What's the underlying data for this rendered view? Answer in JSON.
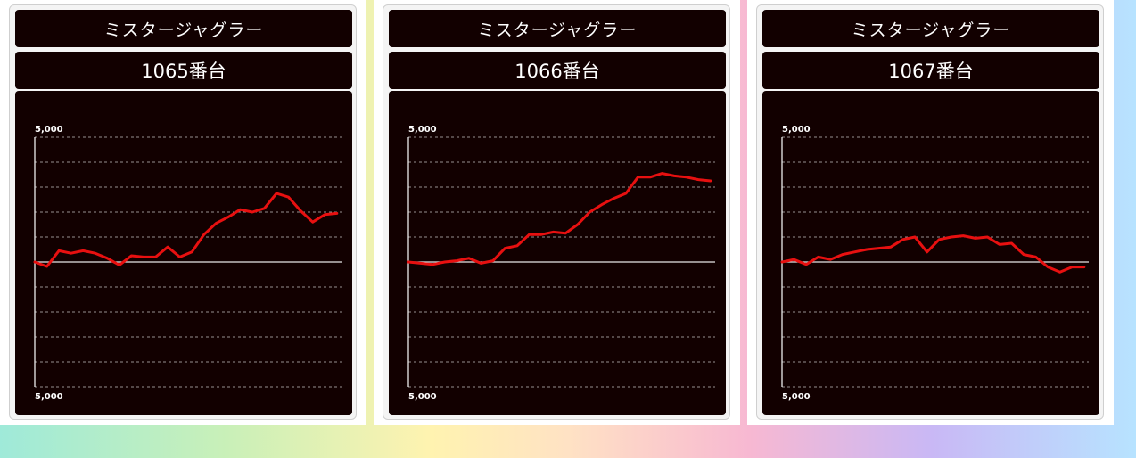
{
  "colors": {
    "line": "#e81010",
    "plot_bg": "#120000",
    "grid": "#ffffff"
  },
  "panels": [
    {
      "machine": "ミスタージャグラー",
      "unit": "1065番台"
    },
    {
      "machine": "ミスタージャグラー",
      "unit": "1066番台"
    },
    {
      "machine": "ミスタージャグラー",
      "unit": "1067番台"
    }
  ],
  "chart_data": [
    {
      "type": "line",
      "y_top_label": "5,000",
      "y_bottom_label": "5,000",
      "ylim": [
        -5000,
        5000
      ],
      "grid": true,
      "series": [
        {
          "values": [
            0,
            -180,
            450,
            350,
            450,
            350,
            150,
            -120,
            250,
            200,
            200,
            600,
            200,
            400,
            1100,
            1550,
            1800,
            2100,
            2000,
            2150,
            2750,
            2600,
            2050,
            1600,
            1900,
            1950
          ]
        }
      ]
    },
    {
      "type": "line",
      "y_top_label": "5,000",
      "y_bottom_label": "5,000",
      "ylim": [
        -5000,
        5000
      ],
      "grid": true,
      "series": [
        {
          "values": [
            0,
            -50,
            -100,
            0,
            50,
            150,
            -50,
            50,
            550,
            650,
            1100,
            1100,
            1200,
            1150,
            1500,
            2000,
            2300,
            2550,
            2750,
            3400,
            3400,
            3550,
            3450,
            3400,
            3300,
            3250
          ]
        }
      ]
    },
    {
      "type": "line",
      "y_top_label": "5,000",
      "y_bottom_label": "5,000",
      "ylim": [
        -5000,
        5000
      ],
      "grid": true,
      "series": [
        {
          "values": [
            0,
            100,
            -100,
            200,
            100,
            300,
            400,
            500,
            550,
            600,
            900,
            1000,
            400,
            900,
            1000,
            1050,
            950,
            1000,
            700,
            750,
            300,
            200,
            -200,
            -400,
            -200,
            -200
          ]
        }
      ]
    }
  ]
}
